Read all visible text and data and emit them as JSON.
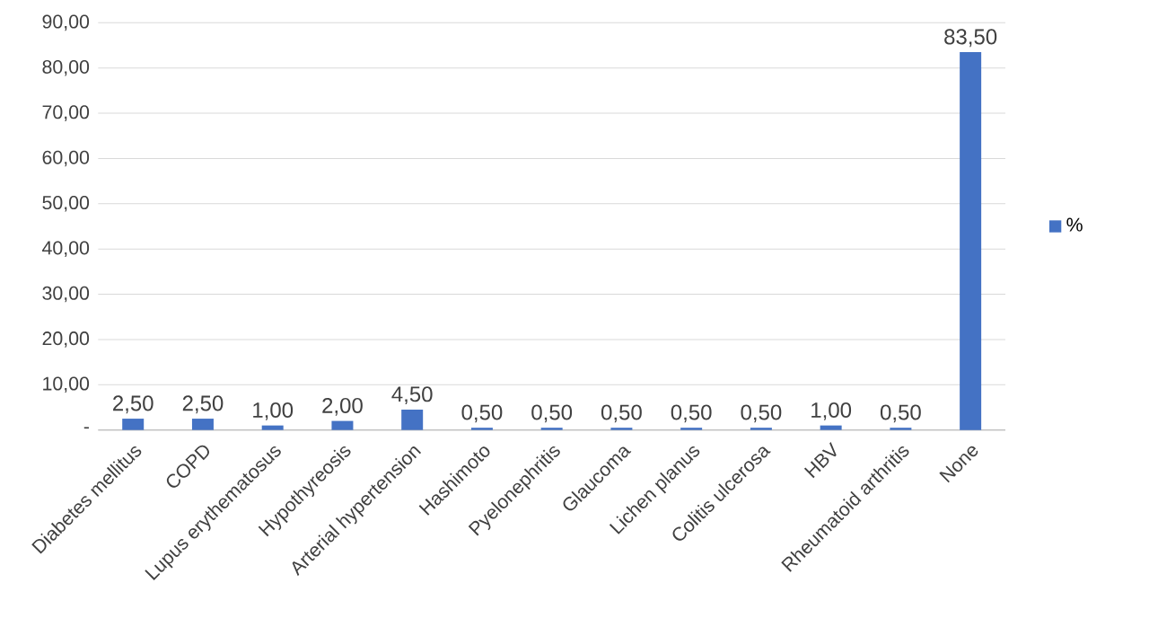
{
  "chart_data": {
    "type": "bar",
    "categories": [
      "Diabetes mellitus",
      "COPD",
      "Lupus erythematosus",
      "Hypothyreosis",
      "Arterial hypertension",
      "Hashimoto",
      "Pyelonephritis",
      "Glaucoma",
      "Lichen planus",
      "Colitis ulcerosa",
      "HBV",
      "Rheumatoid arthritis",
      "None"
    ],
    "series": [
      {
        "name": "%",
        "color": "#4472c4",
        "values": [
          2.5,
          2.5,
          1.0,
          2.0,
          4.5,
          0.5,
          0.5,
          0.5,
          0.5,
          0.5,
          1.0,
          0.5,
          83.5
        ],
        "value_labels": [
          "2,50",
          "2,50",
          "1,00",
          "2,00",
          "4,50",
          "0,50",
          "0,50",
          "0,50",
          "0,50",
          "0,50",
          "1,00",
          "0,50",
          "83,50"
        ]
      }
    ],
    "ylim": [
      0,
      90
    ],
    "yticks": [
      {
        "value": 0,
        "label": "-"
      },
      {
        "value": 10,
        "label": "10,00"
      },
      {
        "value": 20,
        "label": "20,00"
      },
      {
        "value": 30,
        "label": "30,00"
      },
      {
        "value": 40,
        "label": "40,00"
      },
      {
        "value": 50,
        "label": "50,00"
      },
      {
        "value": 60,
        "label": "60,00"
      },
      {
        "value": 70,
        "label": "70,00"
      },
      {
        "value": 80,
        "label": "80,00"
      },
      {
        "value": 90,
        "label": "90,00"
      }
    ],
    "grid": "y",
    "legend": "right"
  }
}
